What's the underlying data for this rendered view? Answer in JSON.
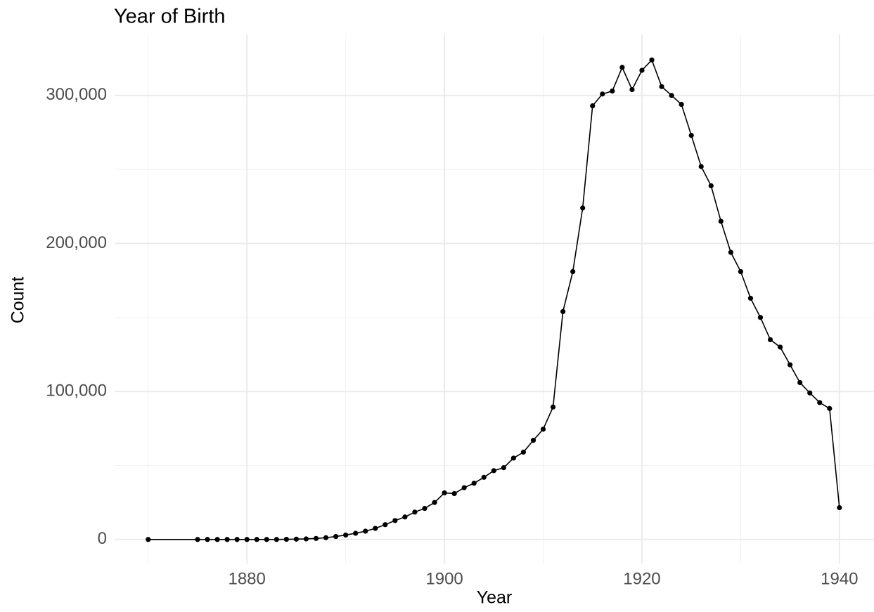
{
  "chart_data": {
    "type": "line",
    "title": "Year of Birth",
    "x_label": "Year",
    "y_label": "Count",
    "x": [
      1870,
      1875,
      1876,
      1877,
      1878,
      1879,
      1880,
      1881,
      1882,
      1883,
      1884,
      1885,
      1886,
      1887,
      1888,
      1889,
      1890,
      1891,
      1892,
      1893,
      1894,
      1895,
      1896,
      1897,
      1898,
      1899,
      1900,
      1901,
      1902,
      1903,
      1904,
      1905,
      1906,
      1907,
      1908,
      1909,
      1910,
      1911,
      1912,
      1913,
      1914,
      1915,
      1916,
      1917,
      1918,
      1919,
      1920,
      1921,
      1922,
      1923,
      1924,
      1925,
      1926,
      1927,
      1928,
      1929,
      1930,
      1931,
      1932,
      1933,
      1934,
      1935,
      1936,
      1937,
      1938,
      1939,
      1940
    ],
    "series": [
      {
        "name": "Count",
        "color": "#000000",
        "values": [
          0,
          0,
          0,
          0,
          0,
          0,
          0,
          0,
          0,
          0,
          100,
          200,
          400,
          700,
          1200,
          2000,
          3000,
          4200,
          5600,
          7500,
          10000,
          12800,
          15200,
          18500,
          21000,
          25000,
          31500,
          31000,
          35000,
          38000,
          42000,
          46500,
          48500,
          55000,
          59000,
          67000,
          74500,
          89500,
          154000,
          181000,
          224000,
          293000,
          301000,
          303000,
          319000,
          304000,
          317000,
          324000,
          306000,
          300000,
          294000,
          273000,
          252000,
          239000,
          215000,
          194000,
          181000,
          163000,
          150000,
          135000,
          130000,
          118000,
          106000,
          99000,
          92500,
          88500,
          21500
        ]
      }
    ],
    "xlim": [
      1866.6,
      1943.5
    ],
    "xticks": [
      1880,
      1900,
      1920,
      1940
    ],
    "x_minor_ticks": [
      1870,
      1890,
      1910,
      1930
    ],
    "ylim": [
      -16250,
      341250
    ],
    "yticks": [
      0,
      {
        "value": 100000,
        "label": "100,000"
      },
      {
        "value": 200000,
        "label": "200,000"
      },
      {
        "value": 300000,
        "label": "300,000"
      }
    ],
    "y_minor_ticks": [
      50000,
      150000,
      250000
    ],
    "grid": true
  }
}
